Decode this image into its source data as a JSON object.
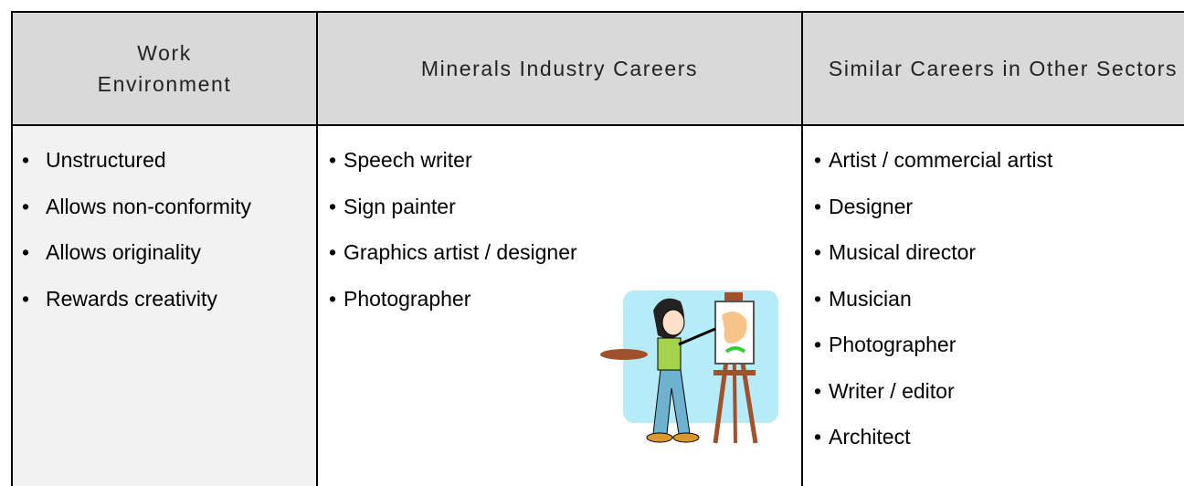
{
  "table": {
    "headers": [
      "Work Environment",
      "Minerals Industry Careers",
      "Similar Careers in Other Sectors"
    ],
    "columns": [
      [
        "Unstructured",
        "Allows non-conformity",
        "Allows originality",
        "Rewards creativity"
      ],
      [
        "Speech writer",
        "Sign painter",
        "Graphics artist / designer",
        "Photographer"
      ],
      [
        "Artist / commercial artist",
        "Designer",
        "Musical director",
        "Musician",
        "Photographer",
        "Writer / editor",
        "Architect"
      ]
    ]
  }
}
